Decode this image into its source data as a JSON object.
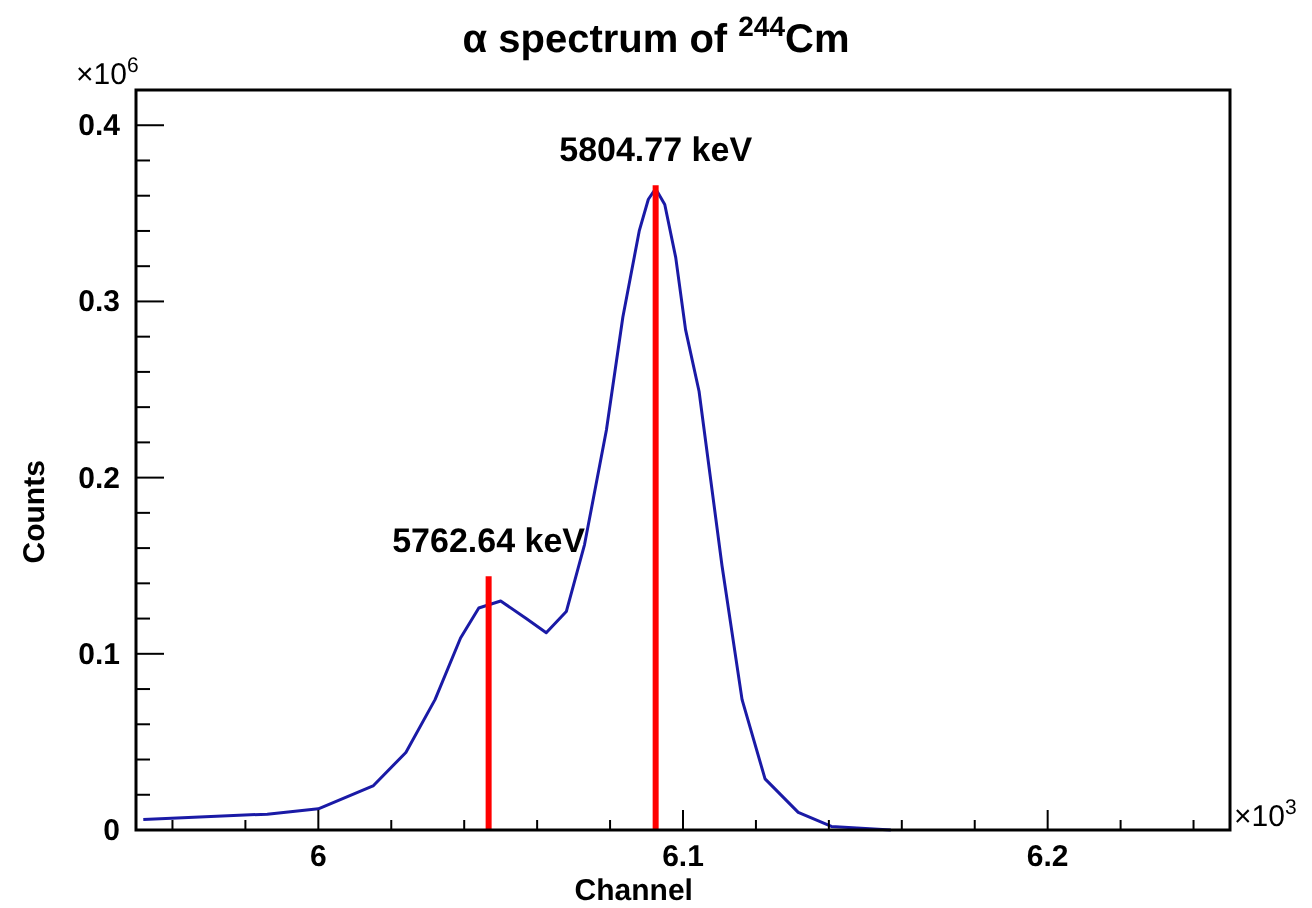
{
  "chart_data": {
    "type": "line",
    "title": "α spectrum of $^{244}$Cm",
    "xlabel": "Channel",
    "ylabel": "Counts",
    "xlim": [
      5.95,
      6.25
    ],
    "ylim": [
      0,
      0.42
    ],
    "xticks": [
      {
        "value": 5.96,
        "label": null
      },
      {
        "value": 5.98,
        "label": null
      },
      6,
      {
        "value": 6.02,
        "label": null
      },
      {
        "value": 6.04,
        "label": null
      },
      {
        "value": 6.06,
        "label": null
      },
      {
        "value": 6.08,
        "label": null
      },
      6.1,
      {
        "value": 6.12,
        "label": null
      },
      {
        "value": 6.14,
        "label": null
      },
      {
        "value": 6.16,
        "label": null
      },
      {
        "value": 6.18,
        "label": null
      },
      6.2,
      {
        "value": 6.22,
        "label": null
      },
      {
        "value": 6.24,
        "label": null
      }
    ],
    "yticks": [
      0,
      {
        "value": 0.02,
        "label": null
      },
      {
        "value": 0.04,
        "label": null
      },
      {
        "value": 0.06,
        "label": null
      },
      {
        "value": 0.08,
        "label": null
      },
      0.1,
      {
        "value": 0.12,
        "label": null
      },
      {
        "value": 0.14,
        "label": null
      },
      {
        "value": 0.16,
        "label": null
      },
      {
        "value": 0.18,
        "label": null
      },
      0.2,
      {
        "value": 0.22,
        "label": null
      },
      {
        "value": 0.24,
        "label": null
      },
      {
        "value": 0.26,
        "label": null
      },
      {
        "value": 0.28,
        "label": null
      },
      0.3,
      {
        "value": 0.32,
        "label": null
      },
      {
        "value": 0.34,
        "label": null
      },
      {
        "value": 0.36,
        "label": null
      },
      {
        "value": 0.38,
        "label": null
      },
      0.4
    ],
    "grid": false,
    "series": [
      {
        "color": "#1a1aa6",
        "x": [
          5.952,
          5.986,
          6.0,
          6.015,
          6.024,
          6.032,
          6.039,
          6.044,
          6.05,
          6.057,
          6.0625,
          6.068,
          6.073,
          6.079,
          6.0835,
          6.088,
          6.0905,
          6.0925,
          6.095,
          6.098,
          6.1007,
          6.1044,
          6.1107,
          6.1162,
          6.1225,
          6.1316,
          6.1407,
          6.157
        ],
        "values": [
          0.006,
          0.009,
          0.012,
          0.025,
          0.044,
          0.074,
          0.109,
          0.126,
          0.13,
          0.12,
          0.112,
          0.124,
          0.162,
          0.227,
          0.291,
          0.34,
          0.358,
          0.364,
          0.355,
          0.325,
          0.284,
          0.249,
          0.15,
          0.074,
          0.029,
          0.01,
          0.002,
          0
        ]
      },
      {
        "color": "#ff0000",
        "x": [
          6.0467,
          6.0467
        ],
        "values": [
          0,
          0.144
        ]
      },
      {
        "color": "#ff0000",
        "x": [
          6.0925,
          6.0925
        ],
        "values": [
          0,
          0.366
        ]
      }
    ],
    "annotations": [
      {
        "text": "5762.64 keV",
        "x": 6.0467,
        "y": 0.144
      },
      {
        "text": "5804.77 keV",
        "x": 6.0925,
        "y": 0.366
      },
      "×10$^{6}$",
      "×10$^{3}$"
    ]
  }
}
